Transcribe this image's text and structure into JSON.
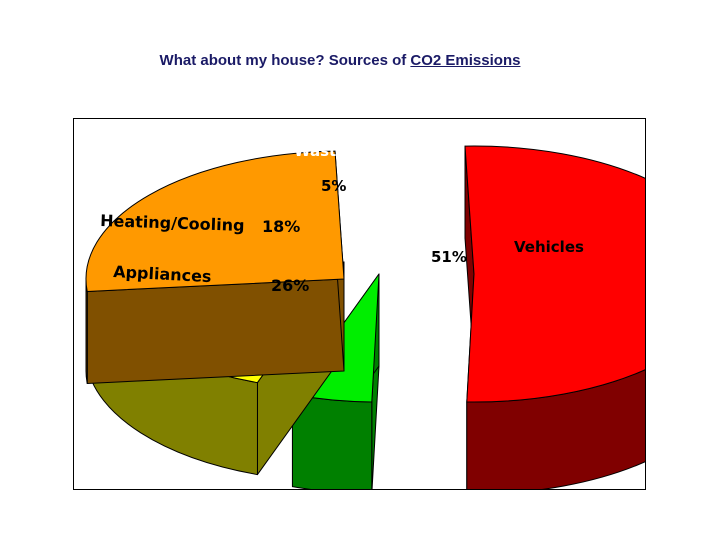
{
  "page": {
    "title_prefix": "What about my house? Sources of ",
    "title_link": "CO2 Emissions"
  },
  "chart_data": {
    "type": "pie",
    "style": "3d-exploded",
    "categories": [
      "Vehicles",
      "Waste",
      "Heating/Cooling",
      "Appliances"
    ],
    "values": [
      51,
      5,
      18,
      26
    ],
    "value_labels": [
      "51%",
      "5%",
      "18%",
      "26%"
    ],
    "top_colors": [
      "#ff0000",
      "#00ee00",
      "#ffff00",
      "#ff9900"
    ],
    "side_colors": [
      "#800000",
      "#008000",
      "#808000",
      "#805000"
    ],
    "legend": "none",
    "title": ""
  }
}
